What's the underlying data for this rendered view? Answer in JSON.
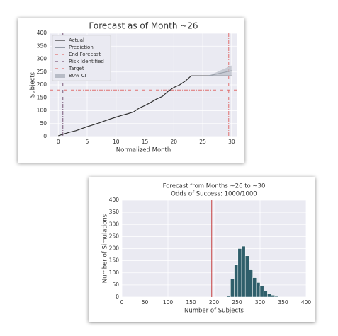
{
  "chart_data": [
    {
      "type": "line",
      "title": "Forecast as of Month ~26",
      "xlabel": "Normalized Month",
      "ylabel": "Subjects",
      "xlim": [
        -1.5,
        31
      ],
      "ylim": [
        0,
        400
      ],
      "xticks": [
        0,
        5,
        10,
        15,
        20,
        25,
        30
      ],
      "yticks": [
        0,
        50,
        100,
        150,
        200,
        250,
        300,
        350,
        400
      ],
      "grid": true,
      "series": [
        {
          "name": "Actual",
          "color": "#333333",
          "x": [
            0,
            1,
            2,
            3,
            4,
            5,
            6,
            7,
            8,
            9,
            10,
            11,
            12,
            13,
            14,
            15,
            16,
            17,
            18,
            19,
            20,
            21,
            22,
            23,
            24,
            25,
            26,
            27,
            28,
            29,
            30
          ],
          "values": [
            3,
            10,
            17,
            22,
            30,
            38,
            45,
            52,
            60,
            68,
            75,
            82,
            88,
            95,
            110,
            120,
            132,
            145,
            155,
            175,
            190,
            200,
            215,
            235,
            235,
            235,
            235,
            235,
            235,
            235,
            235
          ]
        },
        {
          "name": "Prediction",
          "color": "#5a6470",
          "x": [
            26,
            28,
            30
          ],
          "values": [
            235,
            245,
            255
          ]
        },
        {
          "name": "80% CI",
          "color": "#b8bcc6",
          "x": [
            26,
            28,
            30
          ],
          "lower": [
            235,
            235,
            235
          ],
          "upper": [
            235,
            255,
            275
          ]
        }
      ],
      "vlines": [
        {
          "name": "End Forecast",
          "value": 29.5,
          "color": "#e07070"
        },
        {
          "name": "Risk Identified",
          "value": 0.8,
          "color": "#7a5a7a"
        }
      ],
      "hlines": [
        {
          "name": "Target",
          "value": 180,
          "color": "#e07070"
        }
      ]
    },
    {
      "type": "histogram",
      "title": "Forecast from Months ~26 to ~30",
      "subtitle": "Odds of Success: 1000/1000",
      "xlabel": "Number of Subjects",
      "ylabel": "Number of Simulations",
      "xlim": [
        0,
        400
      ],
      "ylim": [
        0,
        400
      ],
      "xticks": [
        0,
        50,
        100,
        150,
        200,
        250,
        300,
        350,
        400
      ],
      "yticks": [
        0,
        50,
        100,
        150,
        200,
        250,
        300,
        350,
        400
      ],
      "grid": true,
      "color": "#2f5f6b",
      "bins": [
        228,
        236,
        244,
        252,
        260,
        268,
        276,
        284,
        292,
        300,
        308,
        316,
        324,
        332,
        340
      ],
      "values": [
        5,
        75,
        135,
        200,
        210,
        170,
        115,
        80,
        60,
        45,
        25,
        15,
        8,
        3
      ],
      "vlines": [
        {
          "value": 195,
          "color": "#c84040"
        }
      ]
    }
  ]
}
